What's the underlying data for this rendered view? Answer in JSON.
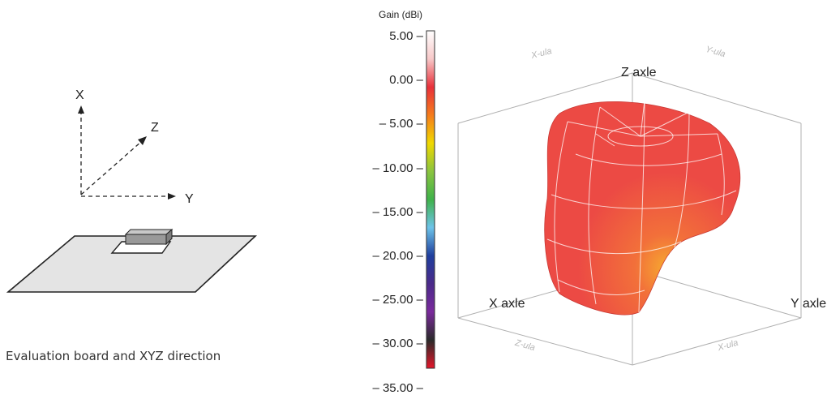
{
  "board_figure": {
    "axis_x": "X",
    "axis_y": "Y",
    "axis_z": "Z",
    "caption": "Evaluation board and XYZ direction"
  },
  "color_scale": {
    "title": "Gain (dBi)",
    "ticks": [
      "5.00 –",
      "0.00 –",
      "– 5.00 –",
      "– 10.00 –",
      "– 15.00 –",
      "– 20.00 –",
      "– 25.00 –",
      "– 30.00 –",
      "– 35.00 –"
    ],
    "colors": [
      "#ffffff",
      "#f7c8c8",
      "#e8303a",
      "#f57c1c",
      "#f0d800",
      "#8ac43f",
      "#3fb24a",
      "#6cc3e8",
      "#1f3f9e",
      "#4b2a8a",
      "#7a2a9c",
      "#2a2a2a",
      "#e5162a"
    ]
  },
  "radiation_plot": {
    "z_label": "Z axle",
    "x_label": "X axle",
    "y_label": "Y axle",
    "faint_top_left": "X-ula",
    "faint_top_right": "Y-ula",
    "faint_bottom_left": "Z-ula",
    "faint_bottom_right": "X-ula",
    "surface_color": "#ec4a44",
    "highlight_color": "#f6a830"
  }
}
